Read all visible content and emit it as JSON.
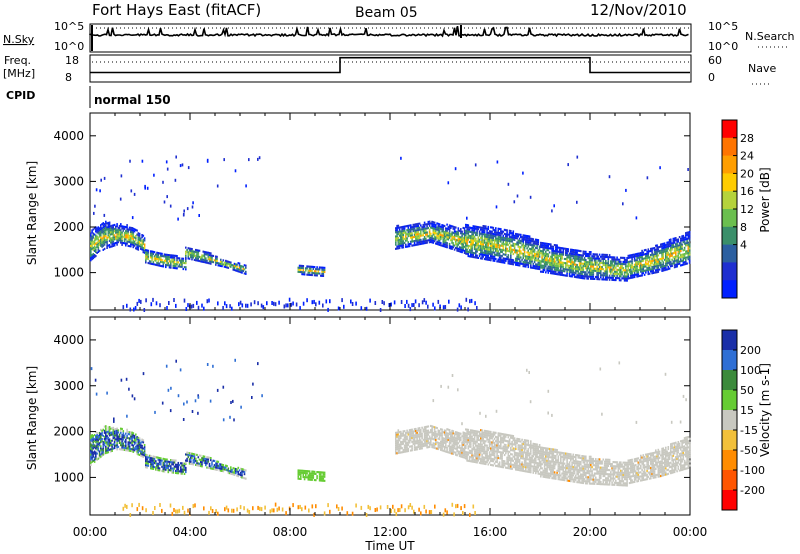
{
  "header": {
    "station": "Fort Hays East (fitACF)",
    "beam": "Beam 05",
    "date": "12/Nov/2010"
  },
  "strips": {
    "nsky_label": "N.Sky",
    "nsky_ticks": [
      "10^5",
      "10^0"
    ],
    "nsearch_label": "N.Search",
    "nsearch_ticks": [
      "10^5",
      "10^0"
    ],
    "freq_label": "Freq.",
    "freq_unit": "[MHz]",
    "freq_ticks": [
      "18",
      "8"
    ],
    "nave_label": "Nave",
    "nave_ticks": [
      "60",
      "0"
    ],
    "cpid_label": "CPID",
    "cpid_value": "normal 150",
    "freq_steps": [
      {
        "from": 0,
        "to": 10,
        "level": 0.35
      },
      {
        "from": 10,
        "to": 20,
        "level": 0.9
      },
      {
        "from": 20,
        "to": 24,
        "level": 0.35
      }
    ]
  },
  "chart_data": [
    {
      "type": "heatmap",
      "quantity": "Power",
      "ylabel": "Slant Range [km]",
      "xlabel": "Time UT",
      "x_ticks": [
        "00:00",
        "04:00",
        "08:00",
        "12:00",
        "16:00",
        "20:00",
        "00:00"
      ],
      "xlim": [
        0,
        24
      ],
      "ylim": [
        180,
        4500
      ],
      "y_ticks": [
        1000,
        2000,
        3000,
        4000
      ],
      "colorbar": {
        "label": "Power [dB]",
        "ticks": [
          "28",
          "24",
          "20",
          "16",
          "12",
          "8",
          "4"
        ],
        "colors": [
          "#ff0000",
          "#ff7400",
          "#ff9e00",
          "#ffcc00",
          "#b5d33c",
          "#6bbf4f",
          "#3a8f6a",
          "#2b5fa0",
          "#1f2fd0",
          "#0020ff"
        ]
      },
      "echo_regions": [
        {
          "t0": 0.0,
          "t1": 2.2,
          "r_low": [
            1250,
            1500,
            1600,
            1550,
            1400
          ],
          "r_high": [
            1900,
            2100,
            2050,
            2000,
            1750
          ]
        },
        {
          "t0": 2.2,
          "t1": 3.8,
          "r_low": [
            1200,
            1100,
            1050
          ],
          "r_high": [
            1500,
            1400,
            1300
          ]
        },
        {
          "t0": 3.8,
          "t1": 6.2,
          "r_low": [
            1300,
            1200,
            1100,
            950
          ],
          "r_high": [
            1550,
            1450,
            1250,
            1150
          ]
        },
        {
          "t0": 8.3,
          "t1": 9.4,
          "r_low": [
            950,
            900
          ],
          "r_high": [
            1150,
            1100
          ]
        },
        {
          "t0": 12.2,
          "t1": 15.0,
          "r_low": [
            1500,
            1650,
            1400
          ],
          "r_high": [
            2000,
            2100,
            1950
          ]
        },
        {
          "t0": 15.0,
          "t1": 18.0,
          "r_low": [
            1350,
            1200,
            1050
          ],
          "r_high": [
            2050,
            1950,
            1700
          ]
        },
        {
          "t0": 18.0,
          "t1": 21.5,
          "r_low": [
            1000,
            850,
            800
          ],
          "r_high": [
            1650,
            1450,
            1300
          ]
        },
        {
          "t0": 21.5,
          "t1": 24.0,
          "r_low": [
            850,
            1000,
            1200
          ],
          "r_high": [
            1350,
            1600,
            1900
          ]
        }
      ],
      "ground_band": {
        "t0": 1.3,
        "t1": 15.5,
        "r_low": 220,
        "r_high": 450
      }
    },
    {
      "type": "heatmap",
      "quantity": "Velocity",
      "ylabel": "Slant Range [km]",
      "xlabel": "Time UT",
      "x_ticks": [
        "00:00",
        "04:00",
        "08:00",
        "12:00",
        "16:00",
        "20:00",
        "00:00"
      ],
      "xlim": [
        0,
        24
      ],
      "ylim": [
        180,
        4500
      ],
      "y_ticks": [
        1000,
        2000,
        3000,
        4000
      ],
      "colorbar": {
        "label": "Velocity [m s-1]",
        "ticks": [
          "200",
          "100",
          "50",
          "15",
          "-15",
          "-50",
          "-100",
          "-200"
        ],
        "colors": [
          "#1a2fa8",
          "#2f6fd4",
          "#3b8a3b",
          "#66cc33",
          "#c8c8c0",
          "#f2c03a",
          "#ff8c00",
          "#ff5500",
          "#ff0000"
        ]
      },
      "echo_regions": [
        {
          "t0": 0.0,
          "t1": 2.2,
          "r_low": [
            1250,
            1500,
            1600,
            1550,
            1400
          ],
          "r_high": [
            1900,
            2100,
            2050,
            2000,
            1750
          ]
        },
        {
          "t0": 2.2,
          "t1": 3.8,
          "r_low": [
            1200,
            1100,
            1050
          ],
          "r_high": [
            1500,
            1400,
            1300
          ]
        },
        {
          "t0": 3.8,
          "t1": 6.2,
          "r_low": [
            1300,
            1200,
            1100,
            950
          ],
          "r_high": [
            1550,
            1450,
            1250,
            1150
          ]
        },
        {
          "t0": 8.3,
          "t1": 9.4,
          "r_low": [
            950,
            900
          ],
          "r_high": [
            1150,
            1100
          ]
        },
        {
          "t0": 12.2,
          "t1": 15.0,
          "r_low": [
            1500,
            1650,
            1400
          ],
          "r_high": [
            2000,
            2100,
            1950
          ]
        },
        {
          "t0": 15.0,
          "t1": 18.0,
          "r_low": [
            1350,
            1200,
            1050
          ],
          "r_high": [
            2050,
            1950,
            1700
          ]
        },
        {
          "t0": 18.0,
          "t1": 21.5,
          "r_low": [
            1000,
            850,
            800
          ],
          "r_high": [
            1650,
            1450,
            1300
          ]
        },
        {
          "t0": 21.5,
          "t1": 24.0,
          "r_low": [
            850,
            1000,
            1200
          ],
          "r_high": [
            1350,
            1600,
            1900
          ]
        }
      ],
      "ground_band": {
        "t0": 1.3,
        "t1": 15.5,
        "r_low": 220,
        "r_high": 450
      }
    }
  ]
}
